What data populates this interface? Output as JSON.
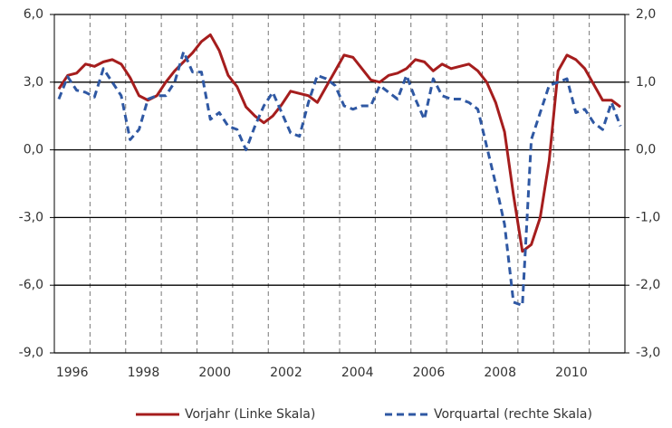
{
  "chart_data": {
    "type": "line",
    "x": [
      1996.125,
      1996.375,
      1996.625,
      1996.875,
      1997.125,
      1997.375,
      1997.625,
      1997.875,
      1998.125,
      1998.375,
      1998.625,
      1998.875,
      1999.125,
      1999.375,
      1999.625,
      1999.875,
      2000.125,
      2000.375,
      2000.625,
      2000.875,
      2001.125,
      2001.375,
      2001.625,
      2001.875,
      2002.125,
      2002.375,
      2002.625,
      2002.875,
      2003.125,
      2003.375,
      2003.625,
      2003.875,
      2004.125,
      2004.375,
      2004.625,
      2004.875,
      2005.125,
      2005.375,
      2005.625,
      2005.875,
      2006.125,
      2006.375,
      2006.625,
      2006.875,
      2007.125,
      2007.375,
      2007.625,
      2007.875,
      2008.125,
      2008.375,
      2008.625,
      2008.875,
      2009.125,
      2009.375,
      2009.625,
      2009.875,
      2010.125,
      2010.375,
      2010.625,
      2010.875,
      2011.125,
      2011.375,
      2011.625,
      2011.875
    ],
    "xlim": [
      1996,
      2012
    ],
    "xticks": [
      {
        "value": 1996.5,
        "label": "1996"
      },
      {
        "value": 1998.5,
        "label": "1998"
      },
      {
        "value": 2000.5,
        "label": "2000"
      },
      {
        "value": 2002.5,
        "label": "2002"
      },
      {
        "value": 2004.5,
        "label": "2004"
      },
      {
        "value": 2006.5,
        "label": "2006"
      },
      {
        "value": 2008.5,
        "label": "2008"
      },
      {
        "value": 2010.5,
        "label": "2010"
      }
    ],
    "xgrid": [
      1997,
      1998,
      1999,
      2000,
      2001,
      2002,
      2003,
      2004,
      2005,
      2006,
      2007,
      2008,
      2009,
      2010,
      2011
    ],
    "ylim": [
      -9,
      6
    ],
    "yticks": [
      {
        "value": 6,
        "label": "6,0"
      },
      {
        "value": 3,
        "label": "3,0"
      },
      {
        "value": 0,
        "label": "0,0"
      },
      {
        "value": -3,
        "label": "-3,0"
      },
      {
        "value": -6,
        "label": "-6,0"
      },
      {
        "value": -9,
        "label": "-9,0"
      }
    ],
    "y2lim": [
      -3,
      2
    ],
    "y2ticks": [
      {
        "value": 2,
        "label": "2,0"
      },
      {
        "value": 1,
        "label": "1,0"
      },
      {
        "value": 0,
        "label": "0,0"
      },
      {
        "value": -1,
        "label": "-1,0"
      },
      {
        "value": -2,
        "label": "-2,0"
      },
      {
        "value": -3,
        "label": "-3,0"
      }
    ],
    "grid": true,
    "legend": "bottom",
    "series": [
      {
        "name": "Vorjahr (Linke Skala)",
        "color": "#a51d1d",
        "axis": "y",
        "dash": false,
        "values": [
          2.7,
          3.3,
          3.4,
          3.8,
          3.7,
          3.9,
          4.0,
          3.8,
          3.2,
          2.4,
          2.2,
          2.4,
          3.0,
          3.5,
          3.9,
          4.3,
          4.8,
          5.1,
          4.4,
          3.3,
          2.8,
          1.9,
          1.5,
          1.2,
          1.5,
          2.0,
          2.6,
          2.5,
          2.4,
          2.1,
          2.8,
          3.5,
          4.2,
          4.1,
          3.6,
          3.1,
          3.0,
          3.3,
          3.4,
          3.6,
          4.0,
          3.9,
          3.5,
          3.8,
          3.6,
          3.7,
          3.8,
          3.5,
          3.0,
          2.1,
          0.8,
          -2.0,
          -4.5,
          -4.2,
          -3.0,
          -0.5,
          3.5,
          4.2,
          4.0,
          3.6,
          2.9,
          2.2,
          2.2,
          1.9
        ]
      },
      {
        "name": "Vorquartal (rechte Skala)",
        "color": "#2f58a3",
        "axis": "y2",
        "dash": true,
        "values": [
          0.75,
          1.08,
          0.88,
          0.85,
          0.78,
          1.2,
          1.0,
          0.8,
          0.15,
          0.3,
          0.75,
          0.8,
          0.8,
          1.0,
          1.45,
          1.15,
          1.15,
          0.45,
          0.55,
          0.35,
          0.3,
          0.0,
          0.35,
          0.65,
          0.85,
          0.55,
          0.25,
          0.2,
          0.7,
          1.1,
          1.05,
          0.95,
          0.65,
          0.6,
          0.65,
          0.65,
          0.95,
          0.85,
          0.75,
          1.1,
          0.75,
          0.45,
          1.05,
          0.8,
          0.75,
          0.75,
          0.7,
          0.6,
          0.05,
          -0.5,
          -1.1,
          -2.25,
          -2.3,
          0.15,
          0.55,
          0.95,
          1.0,
          1.05,
          0.55,
          0.6,
          0.4,
          0.3,
          0.7,
          0.35
        ]
      }
    ]
  }
}
